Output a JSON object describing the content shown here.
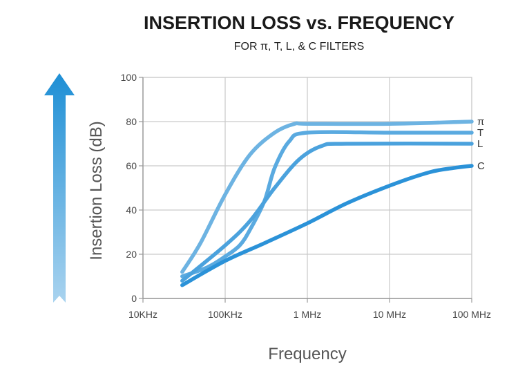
{
  "chart_data": {
    "type": "line",
    "title": "INSERTION LOSS  vs. FREQUENCY",
    "subtitle": "FOR π, T, L, & C FILTERS",
    "xlabel": "Frequency",
    "ylabel": "Insertion Loss (dB)",
    "x_scale": "log",
    "xlim": [
      10000,
      100000000
    ],
    "ylim": [
      0,
      100
    ],
    "grid": true,
    "x_ticks": [
      {
        "value": 10000,
        "label": "10KHz"
      },
      {
        "value": 100000,
        "label": "100KHz"
      },
      {
        "value": 1000000,
        "label": "1 MHz"
      },
      {
        "value": 10000000,
        "label": "10 MHz"
      },
      {
        "value": 100000000,
        "label": "100 MHz"
      }
    ],
    "y_ticks": [
      {
        "value": 0,
        "label": "0"
      },
      {
        "value": 20,
        "label": "20"
      },
      {
        "value": 40,
        "label": "40"
      },
      {
        "value": 60,
        "label": "60"
      },
      {
        "value": 80,
        "label": "80"
      },
      {
        "value": 100,
        "label": "100"
      }
    ],
    "series": [
      {
        "name": "π",
        "color": "#6db3e2",
        "points": [
          [
            30000,
            12
          ],
          [
            50000,
            25
          ],
          [
            100000,
            47
          ],
          [
            200000,
            65
          ],
          [
            400000,
            75
          ],
          [
            700000,
            79
          ],
          [
            1000000,
            79
          ],
          [
            10000000,
            79
          ],
          [
            100000000,
            80
          ]
        ]
      },
      {
        "name": "T",
        "color": "#5aaae0",
        "points": [
          [
            30000,
            10
          ],
          [
            60000,
            14
          ],
          [
            100000,
            19
          ],
          [
            150000,
            24
          ],
          [
            200000,
            31
          ],
          [
            300000,
            44
          ],
          [
            400000,
            59
          ],
          [
            600000,
            71
          ],
          [
            1000000,
            75
          ],
          [
            10000000,
            75
          ],
          [
            100000000,
            75
          ]
        ]
      },
      {
        "name": "L",
        "color": "#4ba2dd",
        "points": [
          [
            30000,
            8
          ],
          [
            100000,
            24
          ],
          [
            200000,
            35
          ],
          [
            400000,
            50
          ],
          [
            800000,
            63
          ],
          [
            1500000,
            69
          ],
          [
            3000000,
            70
          ],
          [
            100000000,
            70
          ]
        ]
      },
      {
        "name": "C",
        "color": "#2b92d8",
        "points": [
          [
            30000,
            6
          ],
          [
            100000,
            17
          ],
          [
            300000,
            25
          ],
          [
            1000000,
            34
          ],
          [
            3000000,
            43
          ],
          [
            10000000,
            51
          ],
          [
            30000000,
            57
          ],
          [
            60000000,
            59
          ],
          [
            100000000,
            60
          ]
        ]
      }
    ]
  },
  "arrow": {
    "color_top": "#1e8fd5",
    "color_bottom": "#a9d3ef"
  },
  "colors": {
    "grid": "#c9c9c9",
    "axis": "#999999"
  }
}
